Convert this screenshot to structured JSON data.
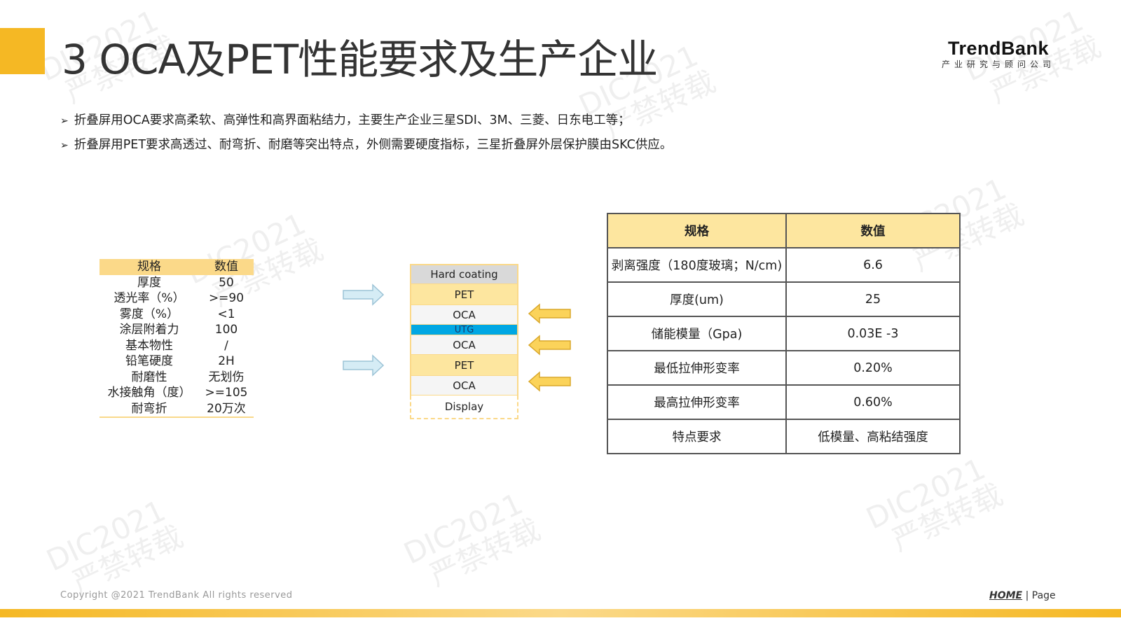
{
  "title": "3 OCA及PET性能要求及生产企业",
  "logo": {
    "name": "TrendBank",
    "tagline": "产业研究与顾问公司"
  },
  "bullets": [
    "折叠屏用OCA要求高柔软、高弹性和高界面粘结力，主要生产企业三星SDI、3M、三菱、日东电工等；",
    "折叠屏用PET要求高透过、耐弯折、耐磨等突出特点，外侧需要硬度指标，三星折叠屏外层保护膜由SKC供应。"
  ],
  "left_table": {
    "headers": [
      "规格",
      "数值"
    ],
    "rows": [
      [
        "厚度",
        "50"
      ],
      [
        "透光率（%）",
        ">=90"
      ],
      [
        "雾度（%）",
        "<1"
      ],
      [
        "涂层附着力",
        "100"
      ],
      [
        "基本物性",
        "/"
      ],
      [
        "铅笔硬度",
        "2H"
      ],
      [
        "耐磨性",
        "无划伤"
      ],
      [
        "水接触角（度）",
        ">=105"
      ],
      [
        "耐弯折",
        "20万次"
      ]
    ]
  },
  "stack": [
    "Hard coating",
    "PET",
    "OCA",
    "UTG",
    "OCA",
    "PET",
    "OCA",
    "Display"
  ],
  "right_table": {
    "headers": [
      "规格",
      "数值"
    ],
    "rows": [
      [
        "剥离强度（180度玻璃；N/cm)",
        "6.6"
      ],
      [
        "厚度(um)",
        "25"
      ],
      [
        "储能模量（Gpa)",
        "0.03E -3"
      ],
      [
        "最低拉伸形变率",
        "0.20%"
      ],
      [
        "最高拉伸形变率",
        "0.60%"
      ],
      [
        "特点要求",
        "低模量、高粘结强度"
      ]
    ]
  },
  "watermark": [
    "DIC2021",
    "严禁转载"
  ],
  "footer": {
    "copyright": "Copyright @2021 TrendBank All rights reserved",
    "home": "HOME",
    "sep": " | ",
    "page": "Page"
  },
  "colors": {
    "accent": "#f5b824",
    "header_fill": "#fde69f",
    "utg": "#00a7e3",
    "pet_arrow": "#d5ecf5",
    "oca_arrow": "#fbd35a"
  }
}
